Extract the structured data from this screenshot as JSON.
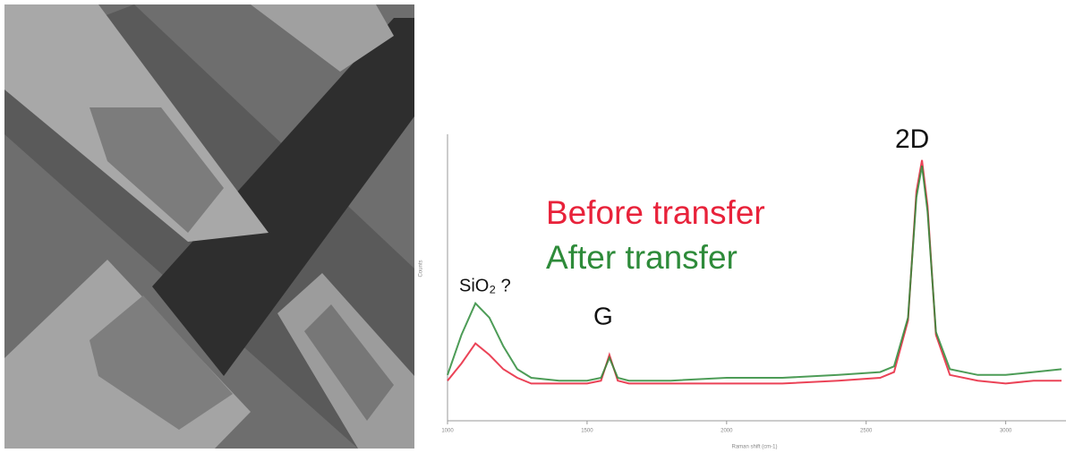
{
  "chart_data": {
    "type": "line",
    "x_label": "Raman shift (cm-1)",
    "y_label": "Counts",
    "xlim": [
      1000,
      3200
    ],
    "xticks": [
      1000,
      1500,
      2000,
      2500,
      3000
    ],
    "ylim": [
      0,
      100
    ],
    "annotations": [
      "Before transfer",
      "After transfer",
      "SiO₂ ?",
      "G",
      "2D"
    ],
    "x": [
      1000,
      1050,
      1100,
      1150,
      1200,
      1250,
      1300,
      1400,
      1500,
      1550,
      1580,
      1610,
      1650,
      1800,
      2000,
      2200,
      2400,
      2550,
      2600,
      2650,
      2680,
      2700,
      2720,
      2750,
      2800,
      2900,
      3000,
      3100,
      3200
    ],
    "series": [
      {
        "name": "Before transfer",
        "color": "#e8223a",
        "values": [
          14,
          20,
          27,
          23,
          18,
          15,
          13,
          13,
          13,
          14,
          23,
          14,
          13,
          13,
          13,
          13,
          14,
          15,
          17,
          35,
          80,
          91,
          75,
          30,
          16,
          14,
          13,
          14,
          14
        ]
      },
      {
        "name": "After transfer",
        "color": "#2e8b3a",
        "values": [
          16,
          30,
          41,
          36,
          26,
          18,
          15,
          14,
          14,
          15,
          22,
          15,
          14,
          14,
          15,
          15,
          16,
          17,
          19,
          36,
          78,
          89,
          73,
          31,
          18,
          16,
          16,
          17,
          18
        ]
      }
    ]
  }
}
